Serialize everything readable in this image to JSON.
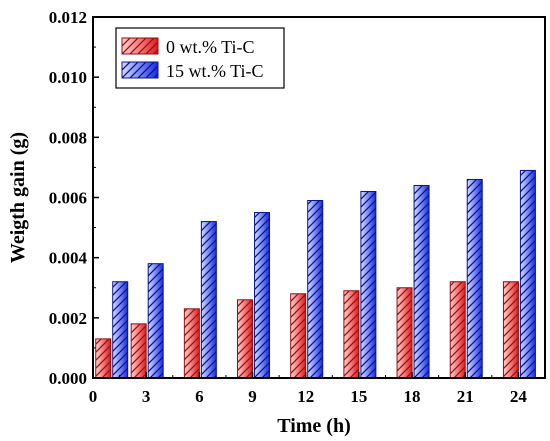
{
  "chart_data": {
    "type": "bar",
    "xlabel": "Time (h)",
    "ylabel": "Weigth gain (g)",
    "x_ticks": [
      0,
      3,
      6,
      9,
      12,
      15,
      18,
      21,
      24
    ],
    "xlim": [
      0,
      25.5
    ],
    "ylim": [
      0,
      0.012
    ],
    "y_ticks": [
      "0.000",
      "0.002",
      "0.004",
      "0.006",
      "0.008",
      "0.010",
      "0.012"
    ],
    "categories": [
      1,
      3,
      6,
      9,
      12,
      15,
      18,
      21,
      24
    ],
    "series": [
      {
        "name": "0 wt.% Ti-C",
        "values": [
          0.0013,
          0.0018,
          0.0023,
          0.0026,
          0.0028,
          0.0029,
          0.003,
          0.0032,
          0.0032
        ],
        "color": "#ee2222"
      },
      {
        "name": "15 wt.% Ti-C",
        "values": [
          0.0032,
          0.0038,
          0.0052,
          0.0055,
          0.0059,
          0.0062,
          0.0064,
          0.0066,
          0.0069
        ],
        "color": "#2233ee"
      }
    ],
    "legend_position": "top-left",
    "grid": false
  }
}
